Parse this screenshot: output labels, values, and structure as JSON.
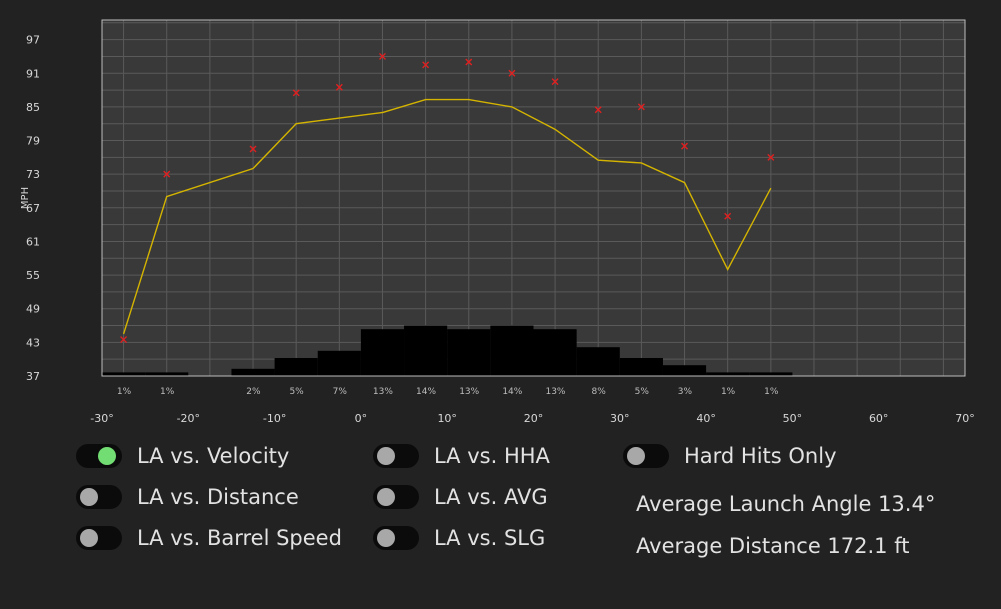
{
  "chart_data": {
    "type": "line",
    "ylabel": "MPH",
    "yticks": [
      37,
      43,
      49,
      55,
      61,
      67,
      73,
      79,
      85,
      91,
      97
    ],
    "ylim": [
      37,
      100.5
    ],
    "xlim": [
      -32.5,
      67.5
    ],
    "xticks": [
      "-30°",
      "-20°",
      "-10°",
      "0°",
      "10°",
      "20°",
      "30°",
      "40°",
      "50°",
      "60°",
      "70°"
    ],
    "xtick_values": [
      -30,
      -20,
      -10,
      0,
      10,
      20,
      30,
      40,
      50,
      60,
      70
    ],
    "grid": true,
    "series": [
      {
        "kind": "line",
        "color": "#d4b400",
        "x": [
          -30,
          -25,
          -15,
          -10,
          -5,
          0,
          5,
          10,
          15,
          20,
          25,
          30,
          35,
          40,
          45
        ],
        "y": [
          44.5,
          69,
          74,
          82,
          83,
          84,
          86.3,
          86.3,
          85,
          81,
          75.5,
          75,
          71.5,
          56,
          70.5
        ]
      },
      {
        "kind": "scatter",
        "marker": "x",
        "color": "#e02020",
        "x": [
          -30,
          -25,
          -15,
          -10,
          -5,
          0,
          5,
          10,
          15,
          20,
          25,
          30,
          35,
          40,
          45
        ],
        "y": [
          43.5,
          73,
          77.5,
          87.5,
          88.5,
          94,
          92.5,
          93,
          91,
          89.5,
          84.5,
          85,
          78,
          65.5,
          76
        ]
      }
    ],
    "histogram": {
      "color": "#000000",
      "bin_width": 5,
      "bins": [
        -30,
        -25,
        -20,
        -15,
        -10,
        -5,
        0,
        5,
        10,
        15,
        20,
        25,
        30,
        35,
        40,
        45,
        50,
        55,
        60,
        65
      ],
      "heights": [
        1,
        1,
        0,
        2,
        5,
        7,
        13,
        14,
        13,
        14,
        13,
        8,
        5,
        3,
        1,
        1,
        0,
        0,
        0,
        0
      ],
      "labels": [
        "1%",
        "1%",
        "",
        "2%",
        "5%",
        "7%",
        "13%",
        "14%",
        "13%",
        "14%",
        "13%",
        "8%",
        "5%",
        "3%",
        "1%",
        "1%",
        "",
        "",
        "",
        ""
      ]
    }
  },
  "toggles": [
    {
      "label": "LA vs. Velocity",
      "on": true
    },
    {
      "label": "LA vs. Distance",
      "on": false
    },
    {
      "label": "LA vs. Barrel Speed",
      "on": false
    },
    {
      "label": "LA vs. HHA",
      "on": false
    },
    {
      "label": "LA vs. AVG",
      "on": false
    },
    {
      "label": "LA vs. SLG",
      "on": false
    },
    {
      "label": "Hard Hits Only",
      "on": false
    }
  ],
  "stats": {
    "avg_launch_angle": "Average Launch Angle 13.4°",
    "avg_distance": "Average Distance 172.1 ft"
  }
}
